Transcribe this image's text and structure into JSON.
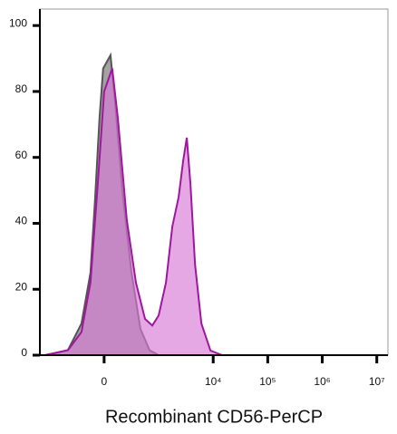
{
  "chart_data": {
    "type": "area",
    "x_label": "Recombinant CD56-PerCP",
    "xscale": "biexponential",
    "xlim": [
      -1500,
      16000000
    ],
    "xticks": [
      0,
      {
        "value": 10000,
        "label": "10⁴"
      },
      {
        "value": 100000,
        "label": "10⁵"
      },
      {
        "value": 1000000,
        "label": "10⁶"
      },
      {
        "value": 10000000,
        "label": "10⁷"
      }
    ],
    "ylim": [
      0,
      105
    ],
    "yticks": [
      0,
      20,
      40,
      60,
      80,
      100
    ],
    "series": [
      {
        "color": "#555555",
        "fill": "#8c8c8c",
        "x": [
          -1202,
          -441,
          -222,
          -122,
          -79,
          -39,
          -8,
          23,
          54,
          95,
          169,
          286,
          441,
          666,
          988
        ],
        "values": [
          0,
          1.5,
          9.6,
          25,
          47,
          72,
          87,
          89,
          91,
          77,
          50,
          25,
          8,
          1.5,
          0
        ]
      },
      {
        "color": "#a0179e",
        "fill": "#d77ad6",
        "x": [
          -1202,
          -441,
          -222,
          -122,
          -54,
          0,
          70,
          122,
          222,
          357,
          544,
          752,
          988,
          1354,
          1772,
          2320,
          2814,
          3282,
          3826,
          4640,
          6080,
          8920,
          14660,
          15000000
        ],
        "values": [
          0,
          1.5,
          7,
          22,
          52,
          80,
          87,
          72,
          41,
          22,
          11,
          9,
          12,
          22,
          39,
          48,
          59,
          66,
          52,
          27.5,
          9.6,
          1.4,
          0,
          0
        ]
      }
    ]
  }
}
